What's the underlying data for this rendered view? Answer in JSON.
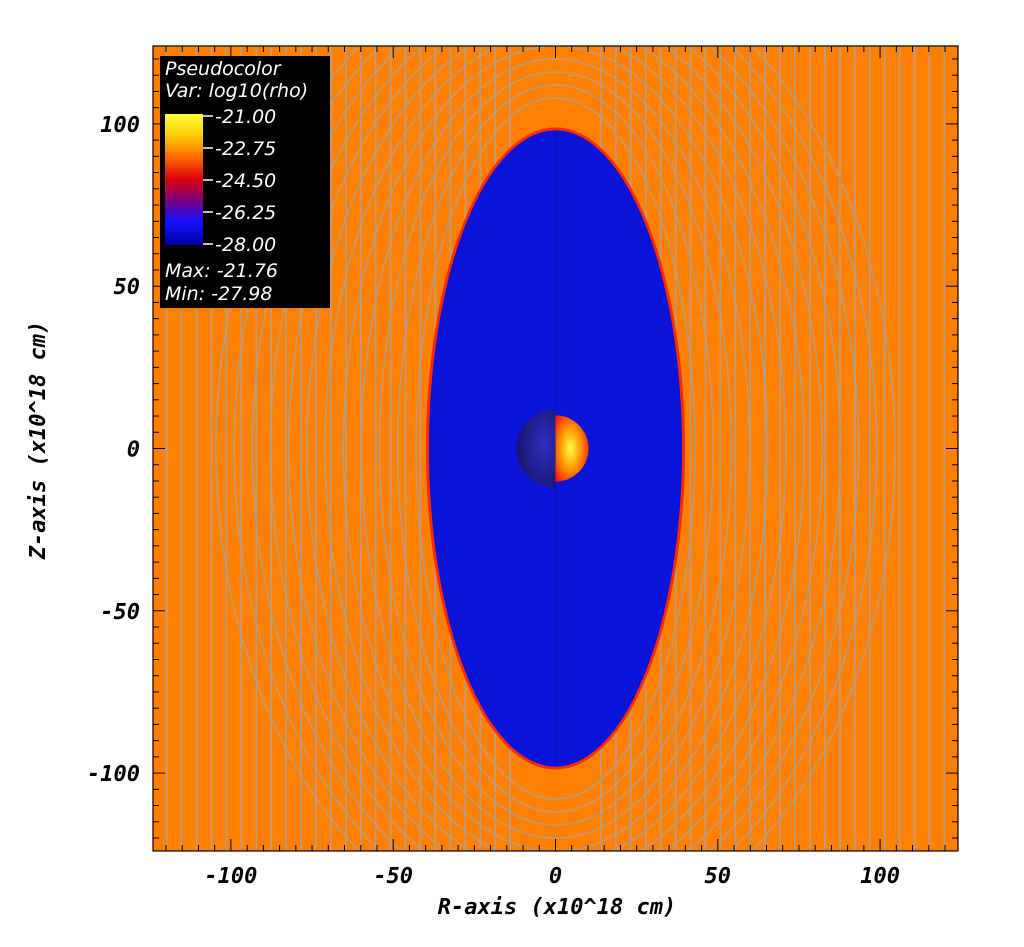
{
  "chart_data": {
    "type": "heatmap",
    "xlabel": "R-axis (x10^18 cm)",
    "ylabel": "Z-axis (x10^18 cm)",
    "xlim": [
      -124,
      124
    ],
    "ylim": [
      -124,
      124
    ],
    "x_ticks": [
      -100,
      -50,
      0,
      50,
      100
    ],
    "y_ticks": [
      100,
      50,
      0,
      -50,
      -100
    ],
    "x_tick_labels": [
      "-100",
      "-50",
      "0",
      "50",
      "100"
    ],
    "y_tick_labels": [
      "100",
      "50",
      "0",
      "-50",
      "-100"
    ],
    "legend": {
      "title": "Pseudocolor",
      "variable": "Var: log10(rho)",
      "levels": [
        "-21.00",
        "-22.75",
        "-24.50",
        "-26.25",
        "-28.00"
      ],
      "max_label": "Max: -21.76",
      "min_label": "Min: -27.98",
      "placement": "top-left"
    },
    "colors": {
      "ambient": "#ff8000",
      "cavity": "#0a14d8",
      "ring": "#a9a39b",
      "rim": "#ff2a00",
      "colorbar": [
        "#ffff40",
        "#ffc800",
        "#ff6a00",
        "#e00000",
        "#800070",
        "#1010ff",
        "#0000a0"
      ]
    },
    "structures": {
      "cavity": {
        "cx": 0,
        "cz": 0,
        "r_semi": 39,
        "z_semi": 98
      },
      "core": {
        "cx": 0,
        "cz": 0,
        "radius": 12
      }
    }
  }
}
